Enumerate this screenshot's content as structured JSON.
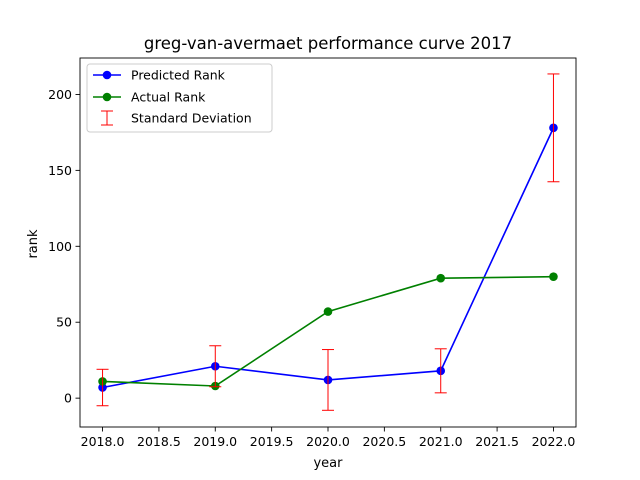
{
  "chart_data": {
    "type": "line",
    "title": "greg-van-avermaet performance curve 2017",
    "xlabel": "year",
    "ylabel": "rank",
    "xlim": [
      2017.8,
      2022.2
    ],
    "ylim": [
      -19,
      224
    ],
    "xticks": [
      "2018.0",
      "2018.5",
      "2019.0",
      "2019.5",
      "2020.0",
      "2020.5",
      "2021.0",
      "2021.5",
      "2022.0"
    ],
    "xtick_values": [
      2018.0,
      2018.5,
      2019.0,
      2019.5,
      2020.0,
      2020.5,
      2021.0,
      2021.5,
      2022.0
    ],
    "yticks": [
      "0",
      "50",
      "100",
      "150",
      "200"
    ],
    "ytick_values": [
      0,
      50,
      100,
      150,
      200
    ],
    "grid": false,
    "legend_position": "upper-left",
    "x": [
      2018,
      2019,
      2020,
      2021,
      2022
    ],
    "series": [
      {
        "name": "Predicted Rank",
        "color": "#0000ff",
        "values": [
          7,
          21,
          12,
          18,
          178
        ],
        "error": [
          12,
          13.5,
          20,
          14.5,
          35.5
        ]
      },
      {
        "name": "Actual Rank",
        "color": "#008000",
        "values": [
          11,
          8,
          57,
          79,
          80
        ]
      }
    ],
    "errorbar": {
      "name": "Standard Deviation",
      "color": "#ff0000"
    }
  }
}
